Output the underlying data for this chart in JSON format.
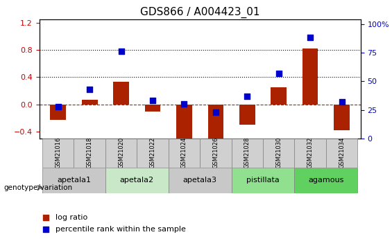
{
  "title": "GDS866 / A004423_01",
  "samples": [
    "GSM21016",
    "GSM21018",
    "GSM21020",
    "GSM21022",
    "GSM21024",
    "GSM21026",
    "GSM21028",
    "GSM21030",
    "GSM21032",
    "GSM21034"
  ],
  "log_ratio": [
    -0.22,
    0.07,
    0.33,
    -0.1,
    -0.52,
    -0.52,
    -0.3,
    0.25,
    0.82,
    -0.38
  ],
  "percentile_rank": [
    28,
    43,
    76,
    33,
    30,
    23,
    37,
    57,
    88,
    32
  ],
  "bar_color": "#aa2200",
  "dot_color": "#0000cc",
  "ylim_left": [
    -0.5,
    1.25
  ],
  "ylim_right": [
    0,
    104.17
  ],
  "yticks_left": [
    -0.4,
    0.0,
    0.4,
    0.8,
    1.2
  ],
  "yticks_right": [
    0,
    25,
    50,
    75,
    100
  ],
  "hline_y": 0.0,
  "dotted_lines": [
    0.4,
    0.8
  ],
  "groups": [
    {
      "label": "apetala1",
      "indices": [
        0,
        1
      ],
      "color": "#c8c8c8"
    },
    {
      "label": "apetala2",
      "indices": [
        2,
        3
      ],
      "color": "#c8e8c8"
    },
    {
      "label": "apetala3",
      "indices": [
        4,
        5
      ],
      "color": "#c8c8c8"
    },
    {
      "label": "pistillata",
      "indices": [
        6,
        7
      ],
      "color": "#90e090"
    },
    {
      "label": "agamous",
      "indices": [
        8,
        9
      ],
      "color": "#60d060"
    }
  ],
  "legend_items": [
    {
      "label": "log ratio",
      "color": "#aa2200",
      "marker": "s"
    },
    {
      "label": "percentile rank within the sample",
      "color": "#0000cc",
      "marker": "s"
    }
  ],
  "genotype_label": "genotype/variation",
  "bar_width": 0.5,
  "dot_size": 40
}
